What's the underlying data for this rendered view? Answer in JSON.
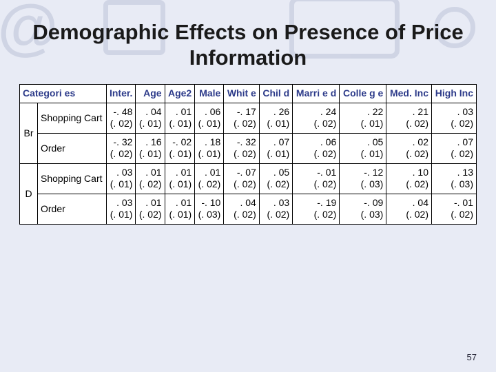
{
  "title": "Demographic Effects on Presence of Price Information",
  "slide_number": "57",
  "colors": {
    "page_bg": "#e8ebf5",
    "header_text": "#2d3b8a",
    "cell_bg": "#ffffff",
    "border": "#000000",
    "decor": "#4a5a8a"
  },
  "table": {
    "headers": [
      "Categories",
      "Inter.",
      "Age",
      "Age2",
      "Male",
      "White",
      "Child",
      "Married",
      "College",
      "Med. Inc",
      "High Inc"
    ],
    "header_display": [
      "Categori\nes",
      "Inter.",
      "Age",
      "Age2",
      "Male",
      "Whit\ne",
      "Chil\nd",
      "Marri\ne\nd",
      "Colle\ng\ne",
      "Med.\nInc",
      "High\nInc"
    ],
    "groups": [
      {
        "label": "Br",
        "rows": [
          {
            "label": "Shopping Cart",
            "cells": [
              {
                "v": "-. 48",
                "se": "(. 02)"
              },
              {
                "v": ". 04",
                "se": "(. 01)"
              },
              {
                "v": ". 01",
                "se": "(. 01)"
              },
              {
                "v": ". 06",
                "se": "(. 01)"
              },
              {
                "v": "-. 17",
                "se": "(. 02)"
              },
              {
                "v": ". 26",
                "se": "(. 01)"
              },
              {
                "v": ". 24",
                "se": "(. 02)"
              },
              {
                "v": ". 22",
                "se": "(. 01)"
              },
              {
                "v": ". 21",
                "se": "(. 02)"
              },
              {
                "v": ". 03",
                "se": "(. 02)"
              }
            ]
          },
          {
            "label": "Order",
            "cells": [
              {
                "v": "-. 32",
                "se": "(. 02)"
              },
              {
                "v": ". 16",
                "se": "(. 01)"
              },
              {
                "v": "-. 02",
                "se": "(. 01)"
              },
              {
                "v": ". 18",
                "se": "(. 01)"
              },
              {
                "v": "-. 32",
                "se": "(. 02)"
              },
              {
                "v": ". 07",
                "se": "(. 01)"
              },
              {
                "v": ". 06",
                "se": "(. 02)"
              },
              {
                "v": ". 05",
                "se": "(. 01)"
              },
              {
                "v": ". 02",
                "se": "(. 02)"
              },
              {
                "v": ". 07",
                "se": "(. 02)"
              }
            ]
          }
        ]
      },
      {
        "label": "D",
        "rows": [
          {
            "label": "Shopping Cart",
            "cells": [
              {
                "v": ". 03",
                "se": "(. 01)"
              },
              {
                "v": ". 01",
                "se": "(. 02)"
              },
              {
                "v": ". 01",
                "se": "(. 01)"
              },
              {
                "v": ". 01",
                "se": "(. 02)"
              },
              {
                "v": "-. 07",
                "se": "(. 02)"
              },
              {
                "v": ". 05",
                "se": "(. 02)"
              },
              {
                "v": "-. 01",
                "se": "(. 02)"
              },
              {
                "v": "-. 12",
                "se": "(. 03)"
              },
              {
                "v": ". 10",
                "se": "(. 02)"
              },
              {
                "v": ". 13",
                "se": "(. 03)"
              }
            ]
          },
          {
            "label": "Order",
            "cells": [
              {
                "v": ". 03",
                "se": "(. 01)"
              },
              {
                "v": ". 01",
                "se": "(. 02)"
              },
              {
                "v": ". 01",
                "se": "(. 01)"
              },
              {
                "v": "-. 10",
                "se": "(. 03)"
              },
              {
                "v": ". 04",
                "se": "(. 02)"
              },
              {
                "v": ". 03",
                "se": "(. 02)"
              },
              {
                "v": "-. 19",
                "se": "(. 02)"
              },
              {
                "v": "-. 09",
                "se": "(. 03)"
              },
              {
                "v": ". 04",
                "se": "(. 02)"
              },
              {
                "v": "-. 01",
                "se": "(. 02)"
              }
            ]
          }
        ]
      }
    ]
  }
}
